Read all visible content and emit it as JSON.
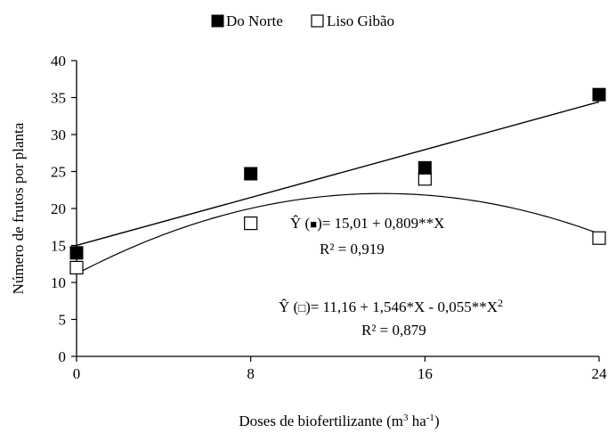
{
  "chart_data": {
    "type": "scatter",
    "xlabel_main": "Doses de biofertilizante  (m",
    "xlabel_sup1": "3",
    "xlabel_mid": " ha",
    "xlabel_sup2": "-1",
    "xlabel_end": ")",
    "ylabel": "Número de frutos por planta",
    "xlim": [
      0,
      24
    ],
    "ylim": [
      0,
      40
    ],
    "x_ticks": [
      0,
      8,
      16,
      24
    ],
    "y_ticks": [
      0,
      5,
      10,
      15,
      20,
      25,
      30,
      35,
      40
    ],
    "legend_position": "top-center",
    "series": [
      {
        "name": "Do Norte",
        "marker": "filled-square",
        "color": "#000000",
        "x": [
          0,
          8,
          16,
          24
        ],
        "y": [
          14.0,
          24.7,
          25.5,
          35.4
        ],
        "fit": {
          "type": "linear",
          "intercept": 15.01,
          "slope": 0.809
        }
      },
      {
        "name": "Liso Gibão",
        "marker": "open-square",
        "color": "#000000",
        "x": [
          0,
          8,
          16,
          24
        ],
        "y": [
          12.0,
          18.0,
          24.0,
          16.0
        ],
        "fit": {
          "type": "quadratic",
          "a": 11.16,
          "b": 1.546,
          "c": -0.055
        }
      }
    ],
    "annotations": {
      "eq1_prefix": "Ŷ (",
      "eq1_sym": "■",
      "eq1_rest": ")= 15,01 + 0,809**X",
      "r2_1": "R² = 0,919",
      "eq2_prefix": "Ŷ (",
      "eq2_sym": "□",
      "eq2_rest": ")= 11,16 + 1,546*X - 0,055**X",
      "eq2_sup": "2",
      "r2_2": "R² = 0,879"
    }
  }
}
